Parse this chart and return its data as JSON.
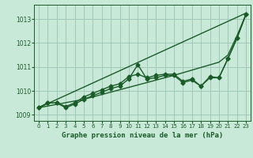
{
  "title": "Graphe pression niveau de la mer (hPa)",
  "bg_color": "#c8e8d8",
  "grid_color": "#a0c8b8",
  "line_color": "#1a5c28",
  "xlim": [
    -0.5,
    23.5
  ],
  "ylim": [
    1008.75,
    1013.6
  ],
  "yticks": [
    1009,
    1010,
    1011,
    1012,
    1013
  ],
  "xticks": [
    0,
    1,
    2,
    3,
    4,
    5,
    6,
    7,
    8,
    9,
    10,
    11,
    12,
    13,
    14,
    15,
    16,
    17,
    18,
    19,
    20,
    21,
    22,
    23
  ],
  "series": [
    {
      "x": [
        0,
        23
      ],
      "y": [
        1009.3,
        1013.25
      ],
      "marker": null,
      "lw": 1.0
    },
    {
      "x": [
        0,
        5,
        10,
        15,
        20,
        21,
        22,
        23
      ],
      "y": [
        1009.3,
        1009.65,
        1010.15,
        1010.65,
        1011.2,
        1011.5,
        1012.3,
        1013.2
      ],
      "marker": null,
      "lw": 1.0
    },
    {
      "x": [
        0,
        1,
        2,
        3,
        4,
        5,
        6,
        7,
        8,
        9,
        10,
        11,
        12,
        13,
        14,
        15,
        16,
        17,
        18,
        19,
        20,
        21,
        22,
        23
      ],
      "y": [
        1009.3,
        1009.5,
        1009.5,
        1009.3,
        1009.45,
        1009.65,
        1009.8,
        1009.95,
        1010.1,
        1010.2,
        1010.5,
        1011.1,
        1010.5,
        1010.55,
        1010.65,
        1010.65,
        1010.35,
        1010.45,
        1010.2,
        1010.55,
        1010.55,
        1011.35,
        1012.2,
        1013.2
      ],
      "marker": "D",
      "lw": 1.0,
      "ms": 2.5
    },
    {
      "x": [
        0,
        1,
        2,
        3,
        4,
        5,
        6,
        7,
        8,
        9,
        10,
        11,
        12,
        13,
        14,
        15,
        16,
        17,
        18,
        19,
        20,
        21,
        22,
        23
      ],
      "y": [
        1009.3,
        1009.5,
        1009.5,
        1009.35,
        1009.5,
        1009.75,
        1009.9,
        1010.05,
        1010.2,
        1010.3,
        1010.6,
        1010.7,
        1010.55,
        1010.65,
        1010.7,
        1010.7,
        1010.4,
        1010.5,
        1010.2,
        1010.6,
        1010.55,
        1011.35,
        1012.2,
        1013.2
      ],
      "marker": "D",
      "lw": 1.0,
      "ms": 2.5
    }
  ]
}
